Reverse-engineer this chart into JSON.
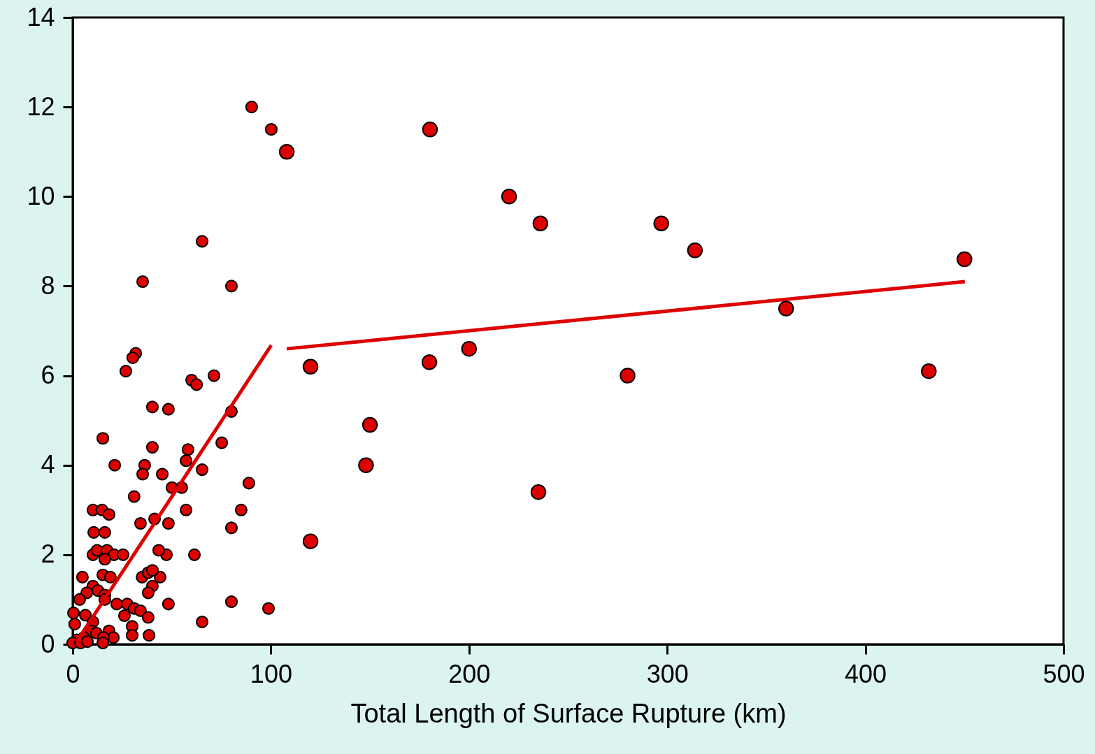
{
  "chart_data": {
    "type": "scatter",
    "xlabel": "Total Length of Surface Rupture (km)",
    "xlim": [
      0,
      500
    ],
    "xticks": [
      0,
      100,
      200,
      300,
      400,
      500
    ],
    "ylim": [
      0,
      14
    ],
    "yticks": [
      0,
      2,
      4,
      6,
      8,
      10,
      12,
      14
    ],
    "grid": false,
    "marker": "circle",
    "series": [
      {
        "color": "#dd0000",
        "x": [
          65.3,
          35.3,
          80.1,
          31.8,
          30.3,
          26.8,
          71.3,
          60.0,
          62.5,
          40.2,
          48.3,
          80.1,
          15.2,
          75.2,
          58.2,
          40.2,
          57.2,
          21.2,
          36.3,
          35.3,
          45.2,
          65.3,
          88.9,
          50.1,
          55.0,
          31.0,
          10.2,
          14.8,
          18.3,
          57.2,
          85.0,
          34.2,
          48.3,
          41.3,
          80.1,
          10.6,
          16.2,
          10.2,
          12.3,
          17.3,
          20.8,
          25.4,
          16.2,
          47.3,
          43.4,
          61.4,
          4.9,
          15.2,
          19.0,
          35.0,
          44.1,
          38.1,
          40.2,
          10.2,
          40.2,
          12.7,
          16.2,
          7.1,
          38.1,
          3.5,
          16.2,
          22.2,
          27.5,
          48.3,
          80.1,
          98.8,
          31.0,
          34.2,
          0.4,
          6.4,
          26.1,
          38.1,
          65.3,
          1.0,
          10.2,
          30.0,
          18.3,
          9.2,
          12.0,
          30.0,
          38.5,
          20.5,
          15.5,
          5.6,
          15.2,
          2.1,
          0.0,
          3.9,
          7.4,
          90.3,
          100.2
        ],
        "values": [
          9.0,
          8.1,
          8.0,
          6.5,
          6.4,
          6.1,
          6.0,
          5.9,
          5.8,
          5.3,
          5.25,
          5.2,
          4.6,
          4.5,
          4.35,
          4.4,
          4.1,
          4.0,
          4.0,
          3.8,
          3.8,
          3.9,
          3.6,
          3.5,
          3.5,
          3.3,
          3.0,
          3.0,
          2.9,
          3.0,
          3.0,
          2.7,
          2.7,
          2.8,
          2.6,
          2.5,
          2.5,
          2.0,
          2.1,
          2.1,
          2.0,
          2.0,
          1.9,
          2.0,
          2.1,
          2.0,
          1.5,
          1.55,
          1.5,
          1.5,
          1.5,
          1.6,
          1.65,
          1.3,
          1.3,
          1.2,
          1.1,
          1.15,
          1.15,
          1.0,
          1.0,
          0.9,
          0.9,
          0.9,
          0.95,
          0.8,
          0.8,
          0.75,
          0.7,
          0.65,
          0.64,
          0.6,
          0.5,
          0.45,
          0.5,
          0.4,
          0.3,
          0.3,
          0.25,
          0.2,
          0.2,
          0.15,
          0.15,
          0.15,
          0.03,
          0.1,
          0.03,
          0.03,
          0.06,
          12.0,
          11.5
        ]
      },
      {
        "color": "#dd0000",
        "x": [
          108.0,
          180.3,
          220.2,
          236.0,
          297.0,
          314.0,
          450.0,
          360.0,
          200.0,
          120.0,
          180.0,
          280.0,
          432.0,
          150.0,
          148.0,
          235.0,
          120.0
        ],
        "values": [
          11.0,
          11.5,
          10.0,
          9.4,
          9.4,
          8.8,
          8.6,
          7.5,
          6.6,
          6.2,
          6.3,
          6.0,
          6.1,
          4.9,
          4.0,
          3.4,
          2.3
        ]
      },
      {
        "type": "line",
        "marker": "none",
        "line_style": "solid",
        "color": "#dd0000",
        "x": [
          2.0,
          100.2
        ],
        "values": [
          0.06,
          6.68
        ]
      },
      {
        "type": "line",
        "marker": "none",
        "line_style": "solid",
        "color": "#dd0000",
        "x": [
          108.0,
          450.2
        ],
        "values": [
          6.6,
          8.1
        ]
      }
    ]
  }
}
